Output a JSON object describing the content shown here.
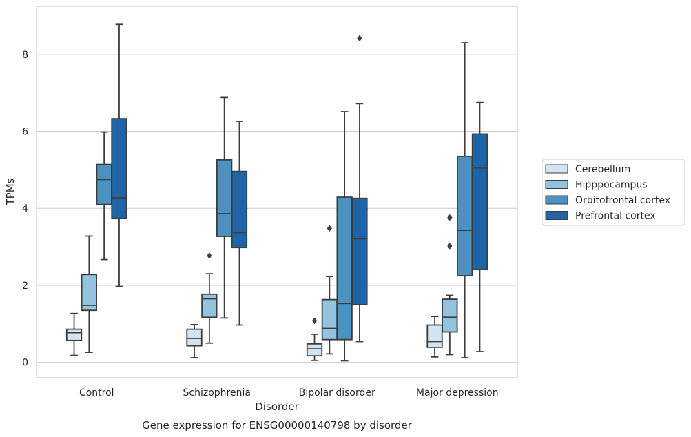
{
  "chart_data": {
    "type": "box",
    "title": "",
    "caption": "Gene expression for ENSG00000140798 by disorder",
    "xlabel": "Disorder",
    "ylabel": "TPMs",
    "ylim": [
      -0.4,
      9.25
    ],
    "yticks": [
      0,
      2,
      4,
      6,
      8
    ],
    "grid": "horizontal",
    "legend_position": "right",
    "categories": [
      "Control",
      "Schizophrenia",
      "Bipolar disorder",
      "Major depression"
    ],
    "series": [
      {
        "name": "Cerebellum",
        "color": "#d3e4f1",
        "boxes": [
          {
            "whisker_low": 0.18,
            "q1": 0.57,
            "median": 0.77,
            "q3": 0.86,
            "whisker_high": 1.27,
            "outliers": []
          },
          {
            "whisker_low": 0.12,
            "q1": 0.43,
            "median": 0.62,
            "q3": 0.86,
            "whisker_high": 0.98,
            "outliers": []
          },
          {
            "whisker_low": 0.05,
            "q1": 0.17,
            "median": 0.35,
            "q3": 0.48,
            "whisker_high": 0.73,
            "outliers": [
              1.08
            ]
          },
          {
            "whisker_low": 0.14,
            "q1": 0.39,
            "median": 0.54,
            "q3": 0.97,
            "whisker_high": 1.19,
            "outliers": []
          }
        ]
      },
      {
        "name": "Hipppocampus",
        "color": "#93c3df",
        "boxes": [
          {
            "whisker_low": 0.26,
            "q1": 1.35,
            "median": 1.48,
            "q3": 2.28,
            "whisker_high": 3.28,
            "outliers": []
          },
          {
            "whisker_low": 0.5,
            "q1": 1.17,
            "median": 1.65,
            "q3": 1.77,
            "whisker_high": 2.3,
            "outliers": [
              2.77
            ]
          },
          {
            "whisker_low": 0.22,
            "q1": 0.59,
            "median": 0.88,
            "q3": 1.63,
            "whisker_high": 2.23,
            "outliers": [
              3.48
            ]
          },
          {
            "whisker_low": 0.2,
            "q1": 0.79,
            "median": 1.17,
            "q3": 1.64,
            "whisker_high": 1.74,
            "outliers": [
              3.02,
              3.76
            ]
          }
        ]
      },
      {
        "name": "Orbitofrontal cortex",
        "color": "#4b91c2",
        "boxes": [
          {
            "whisker_low": 2.67,
            "q1": 4.1,
            "median": 4.75,
            "q3": 5.14,
            "whisker_high": 5.98,
            "outliers": []
          },
          {
            "whisker_low": 1.15,
            "q1": 3.27,
            "median": 3.86,
            "q3": 5.26,
            "whisker_high": 6.88,
            "outliers": []
          },
          {
            "whisker_low": 0.04,
            "q1": 0.59,
            "median": 1.53,
            "q3": 4.29,
            "whisker_high": 6.51,
            "outliers": []
          },
          {
            "whisker_low": 0.12,
            "q1": 2.25,
            "median": 3.43,
            "q3": 5.35,
            "whisker_high": 8.3,
            "outliers": []
          }
        ]
      },
      {
        "name": "Prefrontal cortex",
        "color": "#2064a8",
        "boxes": [
          {
            "whisker_low": 1.97,
            "q1": 3.74,
            "median": 4.27,
            "q3": 6.33,
            "whisker_high": 8.78,
            "outliers": []
          },
          {
            "whisker_low": 0.97,
            "q1": 2.98,
            "median": 3.37,
            "q3": 4.96,
            "whisker_high": 6.26,
            "outliers": []
          },
          {
            "whisker_low": 0.54,
            "q1": 1.5,
            "median": 3.21,
            "q3": 4.26,
            "whisker_high": 6.72,
            "outliers": [
              8.42
            ]
          },
          {
            "whisker_low": 0.28,
            "q1": 2.41,
            "median": 5.05,
            "q3": 5.93,
            "whisker_high": 6.75,
            "outliers": []
          }
        ]
      }
    ]
  }
}
